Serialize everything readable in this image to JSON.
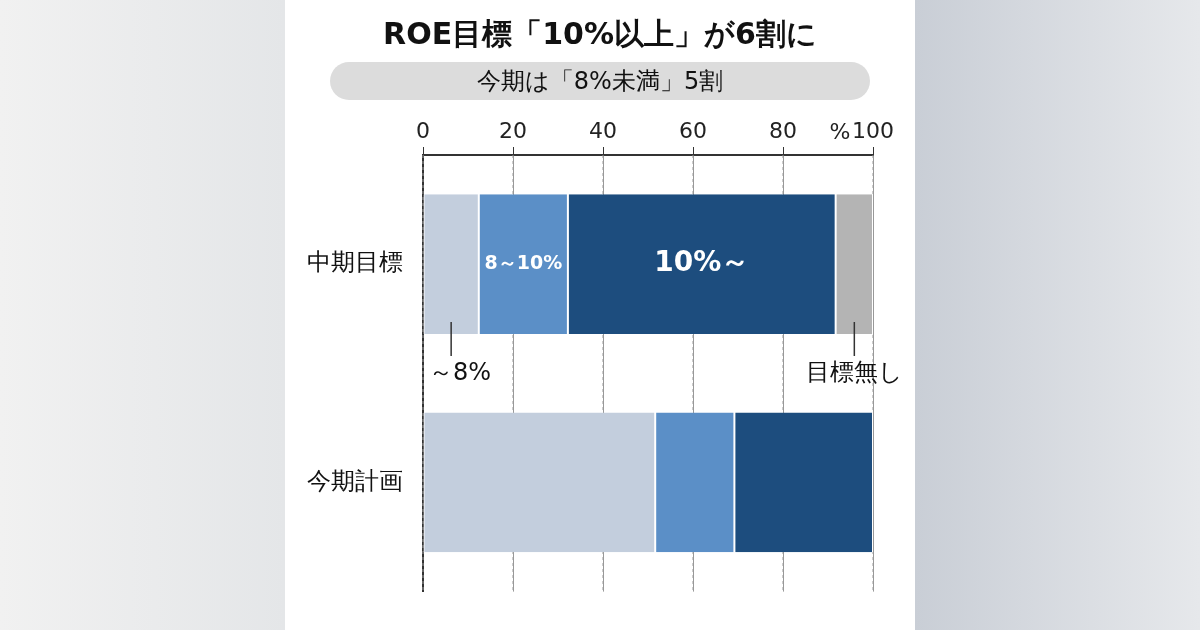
{
  "chart_data": {
    "type": "bar",
    "orientation": "horizontal",
    "stacked": true,
    "title": "ROE目標「10%以上」が6割に",
    "subtitle": "今期は「8%未満」5割",
    "xlabel": "%",
    "categories": [
      "中期目標",
      "今期計画"
    ],
    "series": [
      {
        "name": "～8%",
        "color": "#c3cedd",
        "values": [
          12.4,
          51.6
        ]
      },
      {
        "name": "8～10%",
        "color": "#5b8fc7",
        "values": [
          19.8,
          17.6
        ]
      },
      {
        "name": "10%～",
        "color": "#1d4d7e",
        "values": [
          59.5,
          30.8
        ]
      },
      {
        "name": "目標無し",
        "color": "#b4b4b4",
        "values": [
          8.3,
          null
        ]
      }
    ],
    "xlim": [
      0,
      100
    ],
    "xticks": [
      0,
      20,
      40,
      60,
      80,
      100
    ],
    "grid": "x",
    "legend": false
  }
}
